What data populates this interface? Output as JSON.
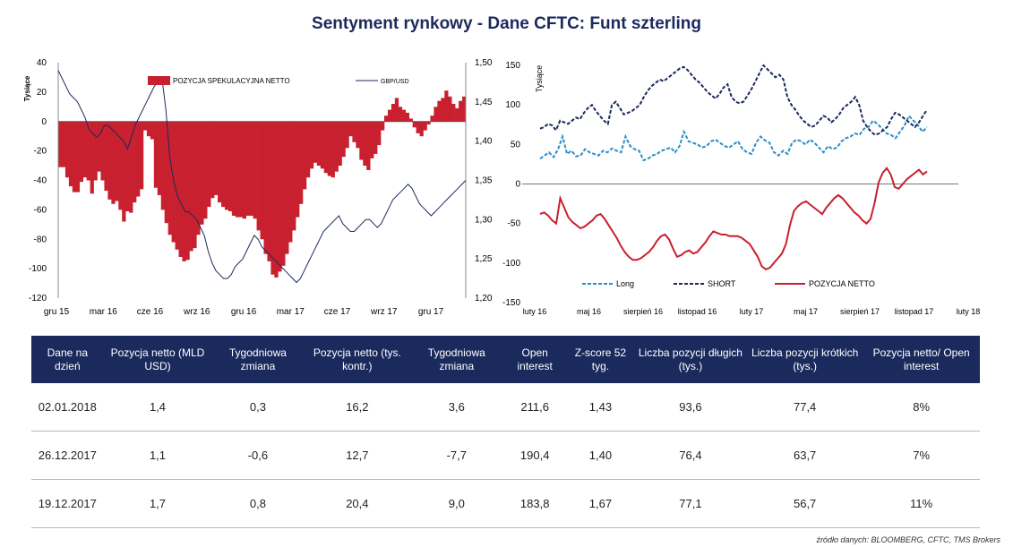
{
  "title": "Sentyment rynkowy - Dane CFTC:  Funt szterling",
  "chart_data": [
    {
      "type": "bar",
      "ylabel": "Tysiące",
      "x_tick_labels": [
        "gru 15",
        "mar 16",
        "cze 16",
        "wrz 16",
        "gru 16",
        "mar 17",
        "cze 17",
        "wrz 17",
        "gru 17"
      ],
      "y_ticks": [
        40,
        20,
        0,
        -20,
        -40,
        -60,
        -80,
        -100,
        -120
      ],
      "y_right_ticks": [
        "1,50",
        "1,45",
        "1,40",
        "1,35",
        "1,30",
        "1,25",
        "1,20"
      ],
      "ylim": [
        -120,
        40
      ],
      "y_right_lim": [
        1.2,
        1.5
      ],
      "legend": "top",
      "series": [
        {
          "name": "POZYCJA SPEKULACYJNA NETTO",
          "type": "bar",
          "color": "#c8202f",
          "values": [
            -31,
            -31,
            -38,
            -44,
            -48,
            -48,
            -41,
            -38,
            -40,
            -49,
            -40,
            -34,
            -40,
            -47,
            -53,
            -56,
            -54,
            -60,
            -68,
            -61,
            -62,
            -55,
            -51,
            -46,
            -6,
            -10,
            -12,
            -45,
            -50,
            -60,
            -69,
            -77,
            -82,
            -87,
            -92,
            -95,
            -94,
            -88,
            -86,
            -77,
            -70,
            -66,
            -58,
            -52,
            -50,
            -55,
            -58,
            -60,
            -61,
            -64,
            -65,
            -65,
            -66,
            -64,
            -64,
            -66,
            -74,
            -80,
            -90,
            -95,
            -104,
            -106,
            -102,
            -98,
            -90,
            -82,
            -74,
            -65,
            -56,
            -46,
            -38,
            -32,
            -28,
            -30,
            -32,
            -35,
            -37,
            -38,
            -34,
            -30,
            -24,
            -18,
            -10,
            -14,
            -18,
            -26,
            -30,
            -33,
            -25,
            -22,
            -16,
            -6,
            4,
            8,
            12,
            16,
            10,
            8,
            6,
            2,
            -4,
            -8,
            -10,
            -6,
            -2,
            4,
            10,
            14,
            16,
            21,
            17,
            12,
            9,
            14,
            17
          ]
        },
        {
          "name": "GBP/USD",
          "type": "line",
          "color": "#1b2a5c",
          "axis": "right",
          "values": [
            1.49,
            1.48,
            1.47,
            1.46,
            1.455,
            1.45,
            1.44,
            1.43,
            1.415,
            1.41,
            1.405,
            1.41,
            1.42,
            1.42,
            1.415,
            1.41,
            1.405,
            1.4,
            1.39,
            1.405,
            1.42,
            1.43,
            1.44,
            1.45,
            1.46,
            1.47,
            1.475,
            1.48,
            1.44,
            1.38,
            1.35,
            1.33,
            1.32,
            1.31,
            1.31,
            1.305,
            1.3,
            1.29,
            1.28,
            1.26,
            1.245,
            1.235,
            1.23,
            1.225,
            1.225,
            1.23,
            1.24,
            1.245,
            1.25,
            1.26,
            1.27,
            1.28,
            1.275,
            1.265,
            1.26,
            1.255,
            1.25,
            1.245,
            1.24,
            1.235,
            1.23,
            1.225,
            1.22,
            1.225,
            1.235,
            1.245,
            1.255,
            1.265,
            1.275,
            1.285,
            1.29,
            1.295,
            1.3,
            1.305,
            1.295,
            1.29,
            1.285,
            1.285,
            1.29,
            1.295,
            1.3,
            1.3,
            1.295,
            1.29,
            1.295,
            1.305,
            1.315,
            1.325,
            1.33,
            1.335,
            1.34,
            1.345,
            1.34,
            1.33,
            1.32,
            1.315,
            1.31,
            1.305,
            1.31,
            1.315,
            1.32,
            1.325,
            1.33,
            1.335,
            1.34,
            1.345,
            1.35
          ]
        }
      ]
    },
    {
      "type": "line",
      "ylabel": "Tysiące",
      "x_tick_labels": [
        "luty 16",
        "maj 16",
        "sierpień 16",
        "listopad 16",
        "luty 17",
        "maj 17",
        "sierpień 17",
        "listopad 17",
        "luty 18"
      ],
      "y_ticks": [
        150,
        100,
        50,
        0,
        -50,
        -100,
        -150
      ],
      "ylim": [
        -150,
        150
      ],
      "legend": "bottom",
      "series": [
        {
          "name": "Long",
          "color": "#2a8fc6",
          "dash": "dashed",
          "values": [
            32,
            36,
            40,
            34,
            44,
            60,
            38,
            42,
            35,
            36,
            44,
            40,
            38,
            36,
            42,
            40,
            45,
            42,
            40,
            60,
            48,
            44,
            42,
            30,
            32,
            36,
            38,
            42,
            44,
            46,
            40,
            48,
            66,
            54,
            52,
            50,
            46,
            48,
            54,
            56,
            52,
            48,
            46,
            50,
            54,
            44,
            40,
            38,
            52,
            60,
            55,
            52,
            40,
            36,
            42,
            38,
            52,
            56,
            54,
            50,
            56,
            52,
            46,
            40,
            48,
            44,
            46,
            54,
            58,
            60,
            64,
            62,
            70,
            72,
            80,
            76,
            70,
            64,
            62,
            58,
            66,
            74,
            86,
            80,
            74,
            66,
            72
          ]
        },
        {
          "name": "SHORT",
          "color": "#1b2a5c",
          "dash": "dashed",
          "values": [
            70,
            72,
            76,
            74,
            68,
            80,
            78,
            76,
            80,
            84,
            82,
            90,
            96,
            100,
            92,
            86,
            80,
            76,
            100,
            104,
            96,
            88,
            90,
            92,
            96,
            100,
            110,
            118,
            124,
            128,
            132,
            130,
            134,
            138,
            142,
            146,
            148,
            144,
            138,
            132,
            128,
            122,
            116,
            112,
            108,
            114,
            122,
            126,
            110,
            104,
            102,
            104,
            112,
            120,
            130,
            140,
            150,
            145,
            140,
            135,
            138,
            132,
            110,
            100,
            94,
            86,
            80,
            76,
            72,
            74,
            80,
            86,
            84,
            78,
            82,
            88,
            96,
            100,
            104,
            110,
            100,
            80,
            72,
            66,
            62,
            64,
            68,
            72,
            82,
            90,
            88,
            84,
            80,
            76,
            72,
            78,
            86,
            94
          ]
        },
        {
          "name": "POZYCJA NETTO",
          "color": "#c8202f",
          "dash": "solid",
          "values": [
            -38,
            -36,
            -40,
            -46,
            -50,
            -18,
            -30,
            -42,
            -48,
            -52,
            -56,
            -54,
            -50,
            -46,
            -40,
            -38,
            -44,
            -52,
            -60,
            -68,
            -78,
            -86,
            -92,
            -96,
            -96,
            -94,
            -90,
            -86,
            -80,
            -72,
            -66,
            -64,
            -70,
            -82,
            -92,
            -90,
            -86,
            -84,
            -88,
            -86,
            -80,
            -74,
            -66,
            -60,
            -62,
            -64,
            -64,
            -66,
            -66,
            -66,
            -68,
            -72,
            -76,
            -84,
            -92,
            -104,
            -108,
            -106,
            -100,
            -94,
            -88,
            -76,
            -52,
            -34,
            -28,
            -24,
            -22,
            -26,
            -30,
            -34,
            -38,
            -30,
            -24,
            -18,
            -14,
            -18,
            -24,
            -30,
            -36,
            -40,
            -46,
            -50,
            -44,
            -24,
            2,
            14,
            20,
            12,
            -4,
            -6,
            0,
            6,
            10,
            14,
            18,
            12,
            16
          ]
        }
      ]
    }
  ],
  "table": {
    "headers": [
      "Dane na dzień",
      "Pozycja netto (MLD USD)",
      "Tygodniowa zmiana",
      "Pozycja netto (tys. kontr.)",
      "Tygodniowa zmiana",
      "Open interest",
      "Z-score 52 tyg.",
      "Liczba pozycji długich (tys.)",
      "Liczba pozycji krótkich (tys.)",
      "Pozycja netto/ Open interest"
    ],
    "rows": [
      [
        "02.01.2018",
        "1,4",
        "0,3",
        "16,2",
        "3,6",
        "211,6",
        "1,43",
        "93,6",
        "77,4",
        "8%"
      ],
      [
        "26.12.2017",
        "1,1",
        "-0,6",
        "12,7",
        "-7,7",
        "190,4",
        "1,40",
        "76,4",
        "63,7",
        "7%"
      ],
      [
        "19.12.2017",
        "1,7",
        "0,8",
        "20,4",
        "9,0",
        "183,8",
        "1,67",
        "77,1",
        "56,7",
        "11%"
      ]
    ]
  },
  "source": "źródło danych: BLOOMBERG, CFTC, TMS Brokers"
}
